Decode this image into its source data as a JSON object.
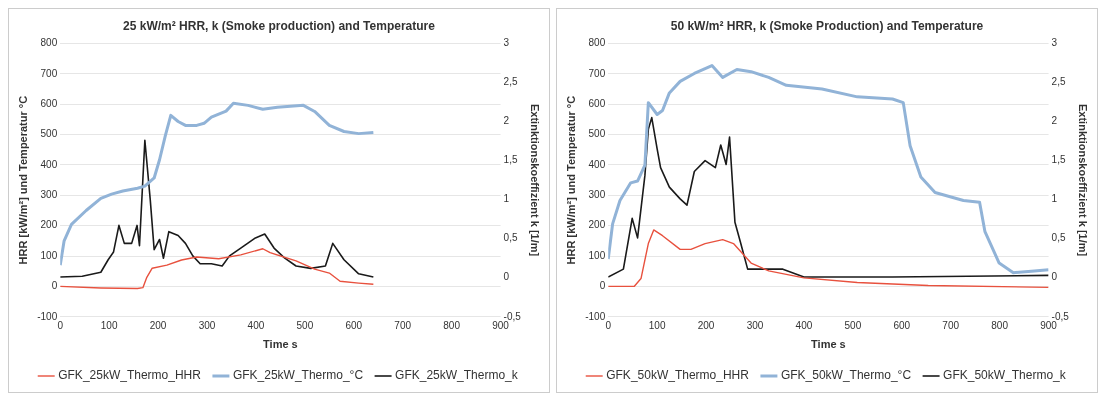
{
  "chart_data": [
    {
      "type": "line",
      "title": "25 kW/m² HRR, k (Smoke production) and Temperature",
      "xlabel": "Time s",
      "ylabel": "HRR [kW/m²] und Temperatur °C",
      "y2label": "Extinktionskoeffizient k [1/m]",
      "xlim": [
        0,
        900
      ],
      "xticks": [
        0,
        100,
        200,
        300,
        400,
        500,
        600,
        700,
        800,
        900
      ],
      "ylim": [
        -100,
        800
      ],
      "yticks": [
        -100,
        0,
        100,
        200,
        300,
        400,
        500,
        600,
        700,
        800
      ],
      "y2lim": [
        -0.5,
        3
      ],
      "y2ticks": [
        {
          "value": -0.5,
          "label": "-0,5"
        },
        0,
        {
          "value": 0.5,
          "label": "0,5"
        },
        1,
        {
          "value": 1.5,
          "label": "1,5"
        },
        2,
        {
          "value": 2.5,
          "label": "2,5"
        },
        3
      ],
      "grid": "y",
      "legend": "bottom",
      "series": [
        {
          "name": "GFK_25kW_Thermo_HHR",
          "color": "#e8513e",
          "x": [
            0,
            83,
            158,
            169,
            177,
            188,
            218,
            248,
            279,
            324,
            369,
            414,
            429,
            482,
            520,
            550,
            572,
            610,
            640
          ],
          "values": [
            0,
            -5,
            -7,
            -4,
            30,
            60,
            70,
            87,
            97,
            91,
            104,
            124,
            111,
            84,
            57,
            44,
            17,
            11,
            7
          ]
        },
        {
          "name": "GFK_25kW_Thermo_°C",
          "color": "#91b3d7",
          "x": [
            0,
            8,
            23,
            53,
            83,
            105,
            128,
            158,
            173,
            192,
            203,
            215,
            226,
            241,
            256,
            279,
            294,
            309,
            339,
            354,
            384,
            414,
            444,
            497,
            520,
            550,
            580,
            610,
            640
          ],
          "values": [
            70,
            150,
            204,
            250,
            290,
            304,
            314,
            323,
            330,
            357,
            417,
            497,
            563,
            543,
            530,
            530,
            537,
            557,
            577,
            603,
            596,
            583,
            590,
            596,
            576,
            530,
            510,
            503,
            507
          ]
        },
        {
          "name": "GFK_25kW_Thermo_k",
          "color": "#1a1a1a",
          "axis": "y2",
          "x": [
            0,
            45,
            83,
            98,
            109,
            120,
            131,
            146,
            157,
            162,
            173,
            184,
            192,
            203,
            211,
            222,
            241,
            256,
            271,
            286,
            309,
            331,
            346,
            369,
            399,
            418,
            437,
            459,
            482,
            512,
            542,
            557,
            580,
            610,
            640
          ],
          "values": [
            0.01,
            0.02,
            0.07,
            0.23,
            0.33,
            0.67,
            0.44,
            0.44,
            0.67,
            0.41,
            1.76,
            1.0,
            0.36,
            0.49,
            0.25,
            0.59,
            0.54,
            0.44,
            0.28,
            0.18,
            0.18,
            0.15,
            0.28,
            0.38,
            0.51,
            0.56,
            0.38,
            0.25,
            0.15,
            0.12,
            0.15,
            0.44,
            0.23,
            0.05,
            0.01
          ]
        }
      ]
    },
    {
      "type": "line",
      "title": "50 kW/m² HRR, k (Smoke Production) and Temperature",
      "xlabel": "Time s",
      "ylabel": "HRR [kW/m²] und Temperatur °C",
      "y2label": "Extinktionskoeffizient k [1/m]",
      "xlim": [
        0,
        900
      ],
      "xticks": [
        0,
        100,
        200,
        300,
        400,
        500,
        600,
        700,
        800,
        900
      ],
      "ylim": [
        -100,
        800
      ],
      "yticks": [
        -100,
        0,
        100,
        200,
        300,
        400,
        500,
        600,
        700,
        800
      ],
      "y2lim": [
        -0.5,
        3
      ],
      "y2ticks": [
        {
          "value": -0.5,
          "label": "-0,5"
        },
        0,
        {
          "value": 0.5,
          "label": "0,5"
        },
        1,
        {
          "value": 1.5,
          "label": "1,5"
        },
        2,
        {
          "value": 2.5,
          "label": "2,5"
        },
        3
      ],
      "grid": "y",
      "legend": "bottom",
      "series": [
        {
          "name": "GFK_50kW_Thermo_HHR",
          "color": "#e8513e",
          "x": [
            0,
            53,
            67,
            82,
            93,
            111,
            147,
            169,
            198,
            234,
            256,
            292,
            328,
            400,
            509,
            654,
            900
          ],
          "values": [
            0,
            0,
            26,
            141,
            186,
            167,
            122,
            122,
            141,
            154,
            141,
            77,
            51,
            28,
            13,
            3,
            -3
          ]
        },
        {
          "name": "GFK_50kW_Thermo_°C",
          "color": "#91b3d7",
          "x": [
            0,
            9,
            24,
            46,
            60,
            75,
            82,
            100,
            111,
            125,
            147,
            176,
            212,
            234,
            263,
            292,
            328,
            364,
            437,
            509,
            581,
            603,
            617,
            639,
            668,
            726,
            759,
            770,
            799,
            828,
            871,
            900
          ],
          "values": [
            90,
            206,
            283,
            341,
            347,
            399,
            605,
            566,
            579,
            637,
            675,
            701,
            727,
            688,
            714,
            707,
            688,
            662,
            650,
            624,
            617,
            605,
            463,
            360,
            309,
            283,
            277,
            180,
            77,
            45,
            51,
            55
          ]
        },
        {
          "name": "GFK_50kW_Thermo_k",
          "color": "#1a1a1a",
          "axis": "y2",
          "x": [
            0,
            31,
            49,
            60,
            75,
            82,
            89,
            100,
            107,
            125,
            147,
            161,
            176,
            198,
            219,
            230,
            241,
            248,
            259,
            270,
            285,
            328,
            357,
            400,
            581,
            900
          ],
          "values": [
            0.01,
            0.11,
            0.76,
            0.51,
            1.31,
            1.9,
            2.05,
            1.65,
            1.41,
            1.16,
            1.01,
            0.93,
            1.36,
            1.5,
            1.41,
            1.7,
            1.45,
            1.8,
            0.71,
            0.46,
            0.11,
            0.11,
            0.11,
            0.01,
            0.01,
            0.03
          ]
        }
      ]
    }
  ]
}
